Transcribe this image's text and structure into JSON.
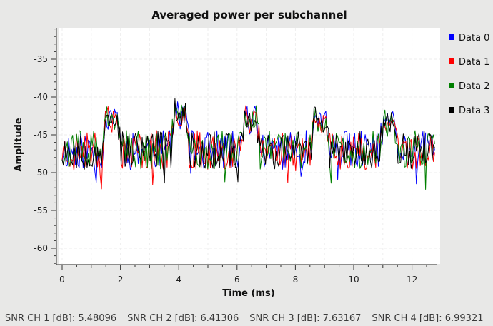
{
  "chart_data": {
    "type": "line",
    "title": "Averaged power per subchannel",
    "xlabel": "Time (ms)",
    "ylabel": "Amplitude",
    "xlim": [
      -0.15,
      12.8
    ],
    "ylim": [
      -62.5,
      -30.7
    ],
    "xticks": [
      0,
      2,
      4,
      6,
      8,
      10,
      12
    ],
    "yticks": [
      -35,
      -40,
      -45,
      -50,
      -55,
      -60
    ],
    "grid": true,
    "legend_position": "right",
    "baseline": -47.0,
    "peaks": [
      {
        "x": 1.7,
        "y": -42.3
      },
      {
        "x": 4.05,
        "y": -41.5
      },
      {
        "x": 6.45,
        "y": -42.2
      },
      {
        "x": 8.85,
        "y": -42.5
      },
      {
        "x": 11.2,
        "y": -42.8
      }
    ],
    "series": [
      {
        "name": "Data 0",
        "color": "#0000ff",
        "seed": 11
      },
      {
        "name": "Data 1",
        "color": "#ff0000",
        "seed": 23
      },
      {
        "name": "Data 2",
        "color": "#008000",
        "seed": 37
      },
      {
        "name": "Data 3",
        "color": "#000000",
        "seed": 53
      }
    ]
  },
  "status": {
    "snr": [
      "SNR CH 1 [dB]: 5.48096",
      "SNR CH 2 [dB]: 6.41306",
      "SNR CH 3 [dB]: 7.63167",
      "SNR CH 4 [dB]: 6.99321"
    ]
  }
}
